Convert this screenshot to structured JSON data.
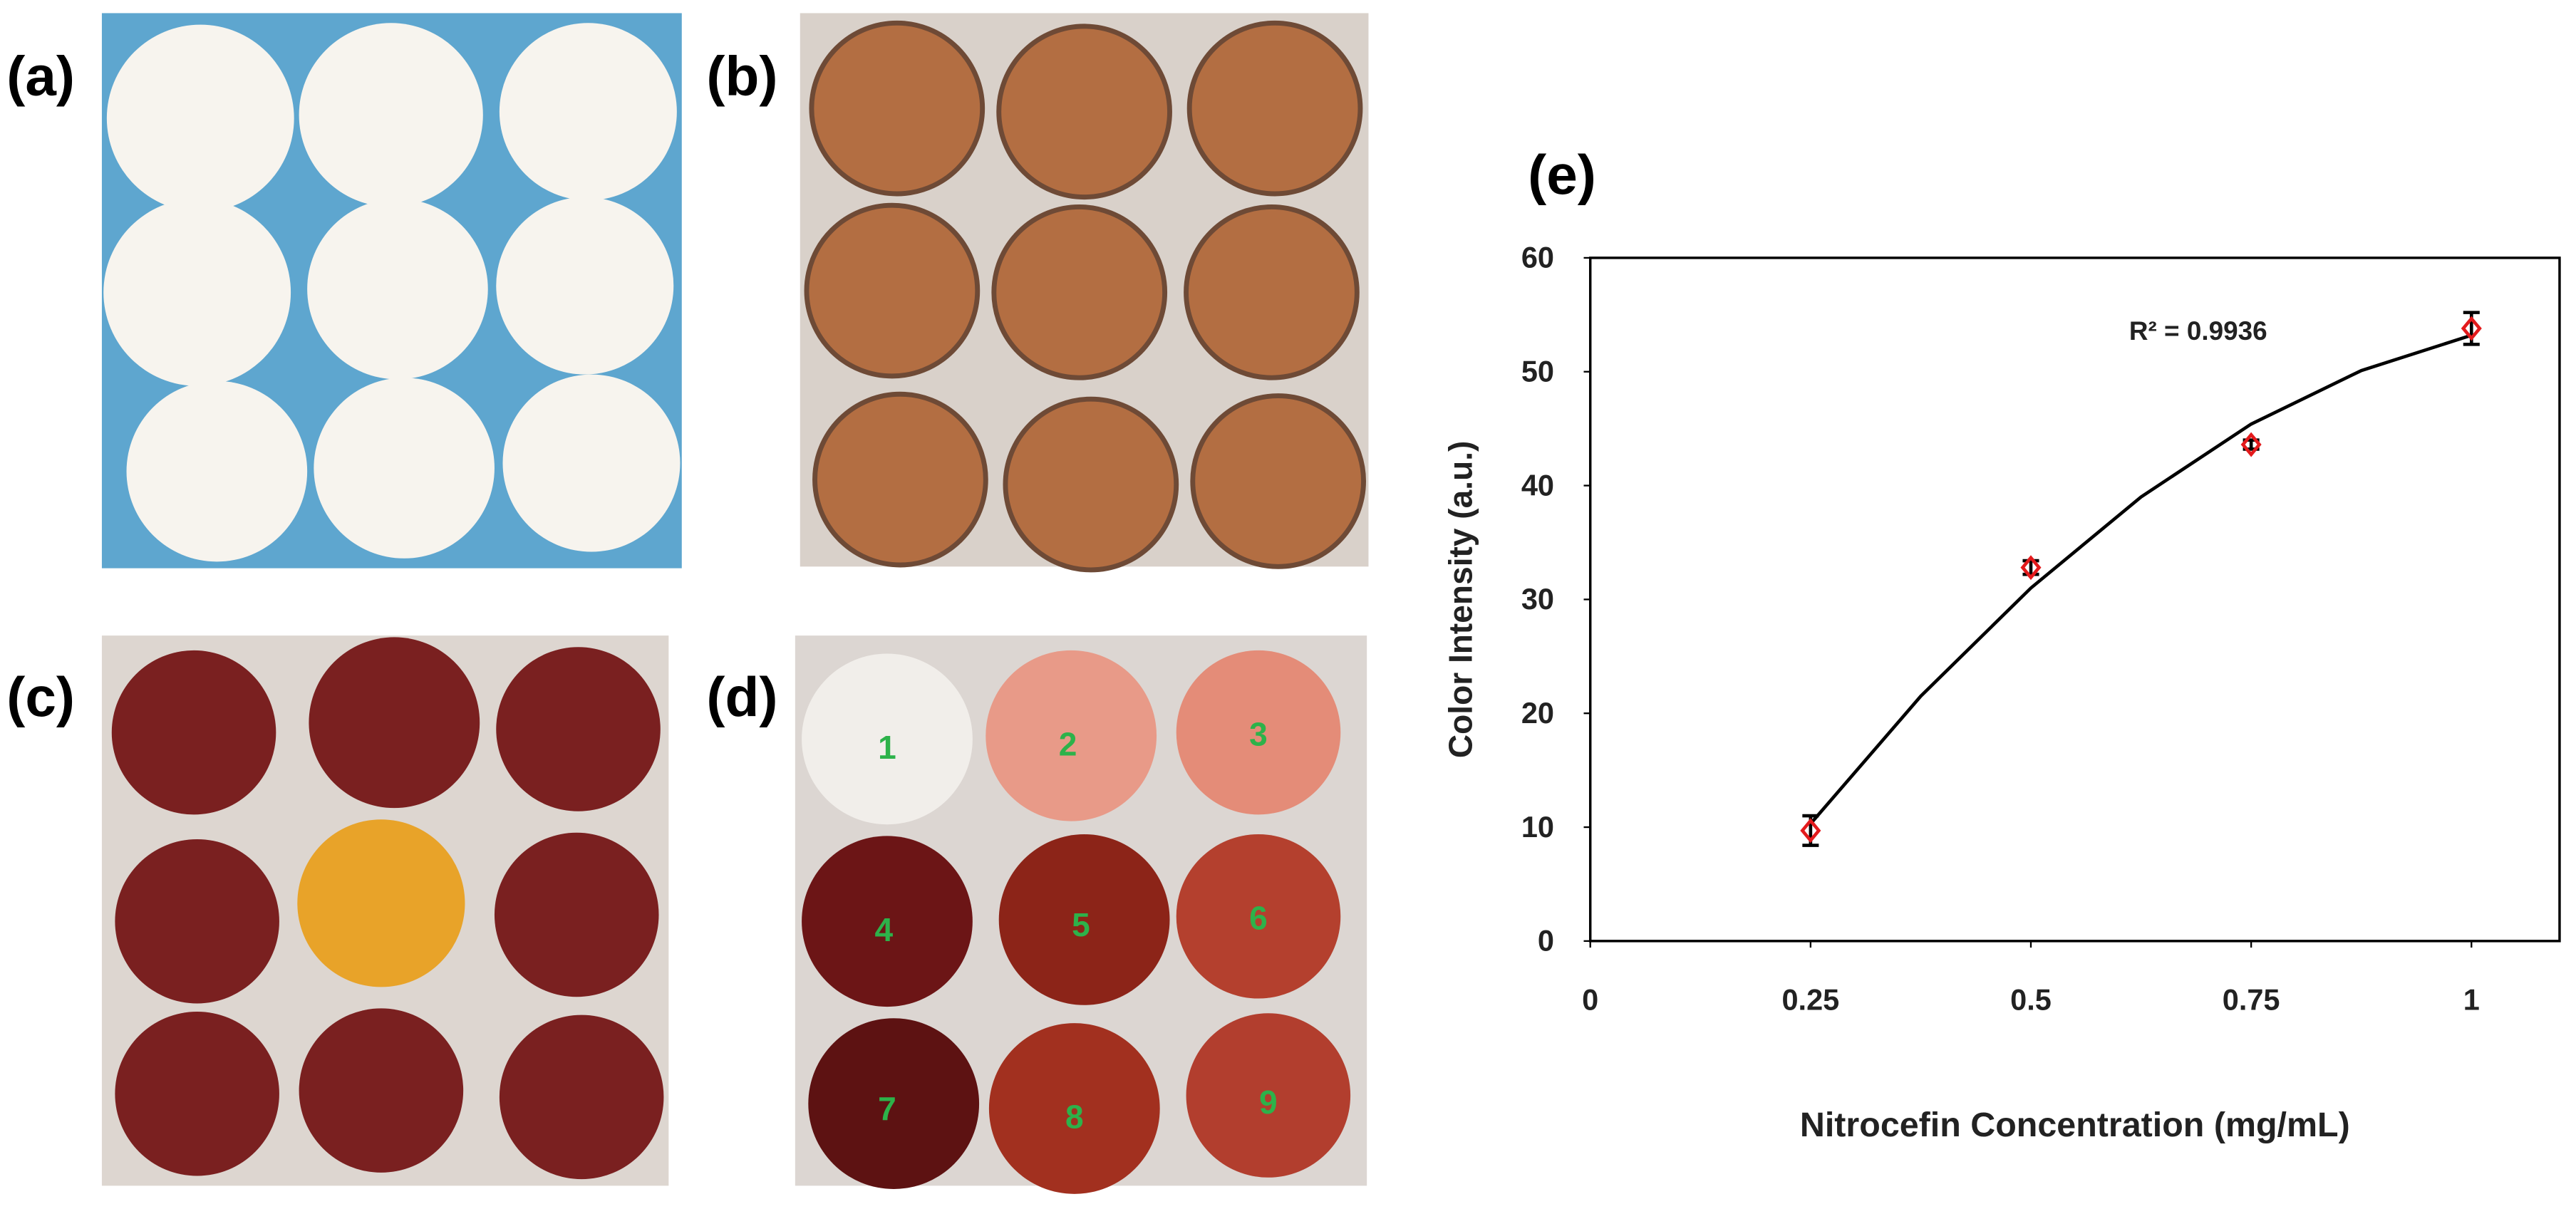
{
  "panels": {
    "labels": [
      "(a)",
      "(b)",
      "(c)",
      "(d)",
      "(e)"
    ],
    "well_numbers": [
      "1",
      "2",
      "3",
      "4",
      "5",
      "6",
      "7",
      "8",
      "9"
    ]
  },
  "chart_data": {
    "type": "scatter",
    "annotation": "R² = 0.9936",
    "x_label": "Nitrocefin Concentration (mg/mL)",
    "y_label": "Color Intensity (a.u.)",
    "x": [
      0.25,
      0.5,
      0.75,
      1
    ],
    "series": [
      {
        "color": "#e31a1c",
        "values": [
          9.7,
          32.8,
          43.6,
          53.8
        ],
        "errors": [
          1.3,
          0.6,
          0.4,
          1.4
        ]
      }
    ],
    "trendline": {
      "color": "#000000",
      "x": [
        0.25,
        0.375,
        0.5,
        0.625,
        0.75,
        0.875,
        1
      ],
      "values": [
        10.3,
        21.5,
        31.0,
        39.0,
        45.4,
        50.1,
        53.2
      ]
    },
    "xlim": [
      0,
      1.1
    ],
    "ylim": [
      0,
      60
    ],
    "xticks": [
      0,
      0.25,
      0.5,
      0.75,
      1
    ],
    "yticks": [
      0,
      10,
      20,
      30,
      40,
      50,
      60
    ],
    "grid": false
  }
}
